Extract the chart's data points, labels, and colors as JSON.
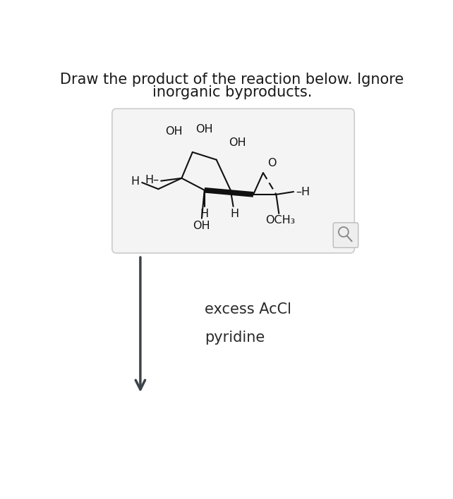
{
  "title_line1": "Draw the product of the reaction below. Ignore",
  "title_line2": "inorganic byproducts.",
  "title_fontsize": 15,
  "title_color": "#1a1a1a",
  "bg_color": "#ffffff",
  "box_bg": "#f4f4f4",
  "box_edge": "#cccccc",
  "reagent1": "excess AcCl",
  "reagent2": "pyridine",
  "reagent_fontsize": 15,
  "reagent_color": "#2a2a2a",
  "arrow_color": "#3d4449",
  "label_color": "#111111",
  "mol_fs": 11.5
}
